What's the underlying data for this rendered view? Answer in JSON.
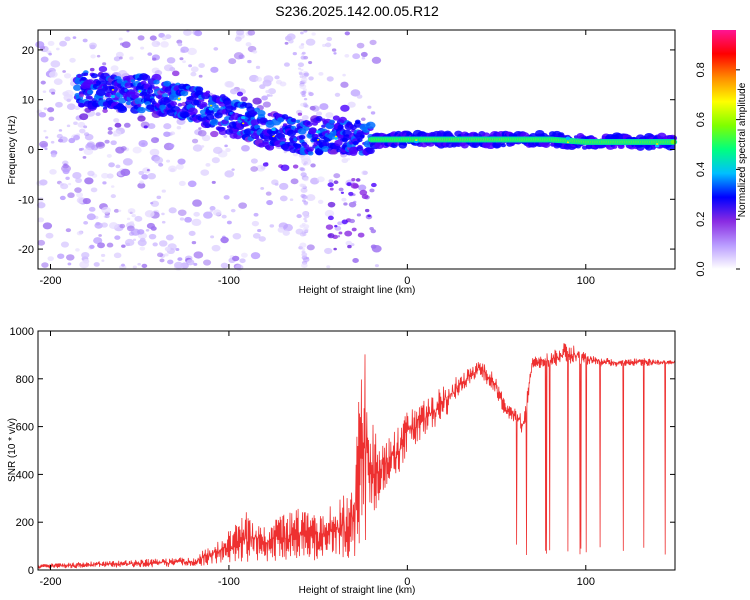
{
  "title": "S236.2025.142.00.05.R12",
  "chart_data": [
    {
      "type": "heatmap",
      "xlabel": "Height of straight line (km)",
      "ylabel": "Frequency (Hz)",
      "xlim": [
        -207,
        150
      ],
      "ylim": [
        -24,
        24
      ],
      "xticks": [
        -200,
        -100,
        0,
        100
      ],
      "yticks": [
        -20,
        -10,
        0,
        10,
        20
      ],
      "colorbar": {
        "label": "Normalized spectral amplitude",
        "range": [
          0,
          0.96
        ],
        "ticks": [
          "0.0",
          "0.2",
          "0.4",
          "0.6",
          "0.8"
        ],
        "colormap": [
          "#ffffff",
          "#b99cff",
          "#8a2be2",
          "#0000ff",
          "#00bfff",
          "#00ff7f",
          "#7fff00",
          "#ffff00",
          "#ff8c00",
          "#ff0000",
          "#ff1493"
        ]
      },
      "ridge": {
        "x": [
          -180,
          -160,
          -140,
          -120,
          -100,
          -80,
          -60,
          -40,
          -20,
          0,
          20,
          40,
          60,
          80,
          100,
          120,
          150
        ],
        "freq": [
          12,
          11.5,
          11,
          9,
          7,
          4,
          2.5,
          3,
          2,
          2,
          2,
          2,
          2,
          2,
          1.5,
          1.5,
          1.5
        ]
      }
    },
    {
      "type": "line",
      "xlabel": "Height of straight line (km)",
      "ylabel": "SNR (10 * v/v)",
      "xlim": [
        -207,
        150
      ],
      "ylim": [
        0,
        1000
      ],
      "xticks": [
        -200,
        -100,
        0,
        100
      ],
      "yticks": [
        0,
        200,
        400,
        600,
        800,
        1000
      ],
      "color": "#ee3030",
      "envelope": {
        "x": [
          -207,
          -180,
          -150,
          -120,
          -105,
          -90,
          -80,
          -70,
          -60,
          -50,
          -40,
          -30,
          -25,
          -20,
          -15,
          -10,
          -5,
          0,
          10,
          20,
          30,
          35,
          40,
          45,
          50,
          55,
          60,
          65,
          70,
          80,
          90,
          100,
          110,
          120,
          130,
          140,
          150
        ],
        "low": [
          5,
          8,
          10,
          15,
          25,
          30,
          35,
          40,
          40,
          40,
          45,
          50,
          60,
          150,
          300,
          380,
          400,
          480,
          560,
          620,
          740,
          770,
          820,
          770,
          720,
          640,
          620,
          560,
          840,
          850,
          860,
          860,
          850,
          850,
          850,
          855,
          860
        ],
        "high": [
          25,
          35,
          45,
          55,
          130,
          250,
          180,
          230,
          260,
          220,
          300,
          360,
          990,
          650,
          540,
          560,
          600,
          680,
          720,
          780,
          820,
          850,
          880,
          860,
          810,
          700,
          680,
          650,
          890,
          910,
          960,
          910,
          890,
          880,
          890,
          880,
          880
        ]
      },
      "dropout_region_x": [
        60,
        150
      ],
      "dropout_low": 60
    }
  ]
}
